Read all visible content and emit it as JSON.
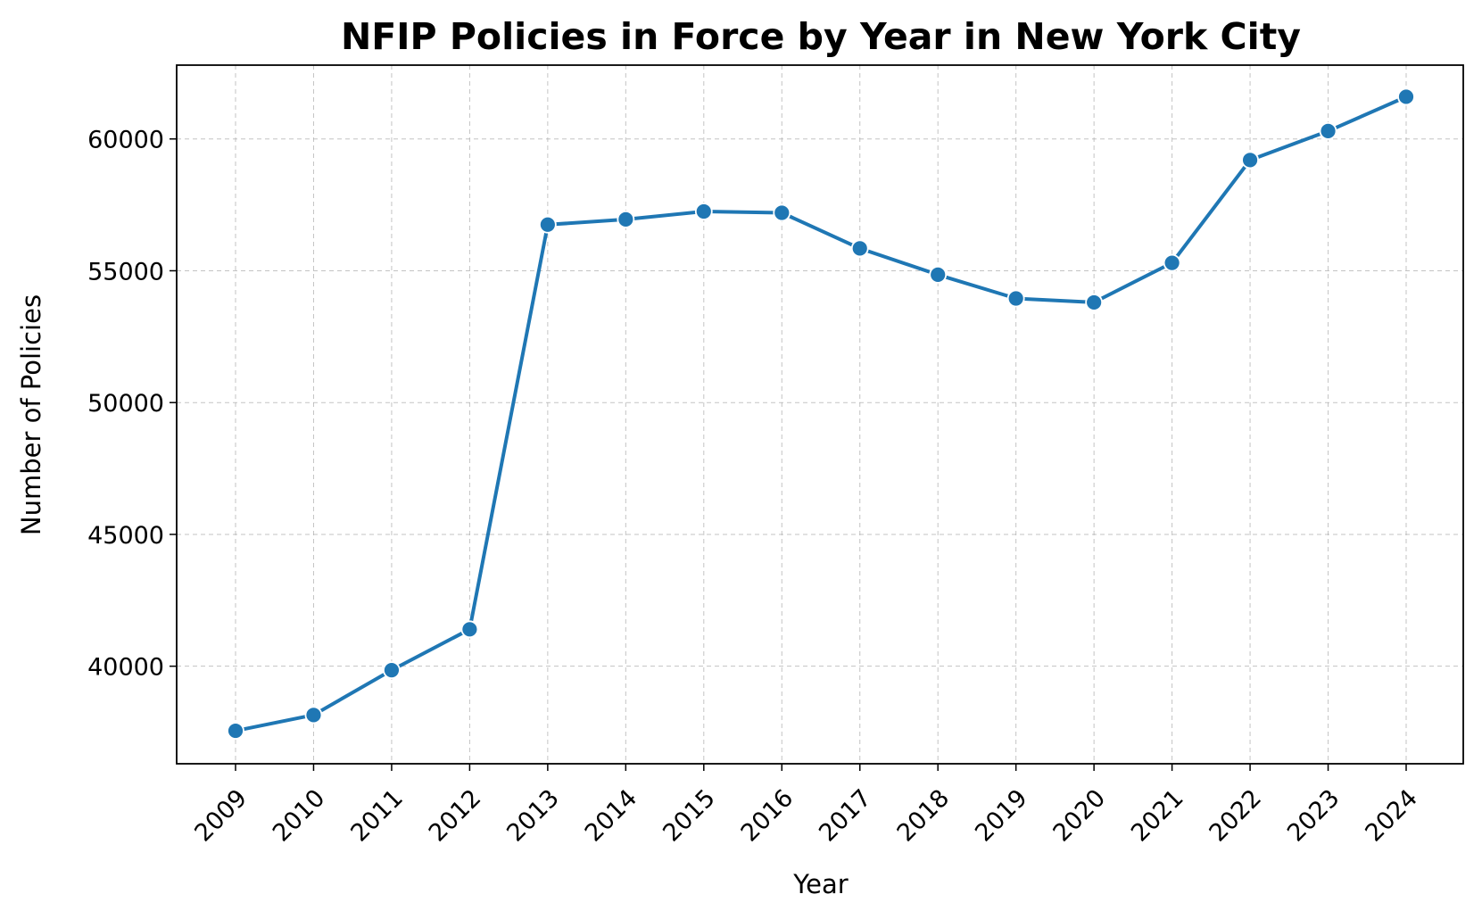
{
  "chart_data": {
    "type": "line",
    "title": "NFIP Policies in Force by Year in New York City",
    "xlabel": "Year",
    "ylabel": "Number of Policies",
    "categories": [
      "2009",
      "2010",
      "2011",
      "2012",
      "2013",
      "2014",
      "2015",
      "2016",
      "2017",
      "2018",
      "2019",
      "2020",
      "2021",
      "2022",
      "2023",
      "2024"
    ],
    "series": [
      {
        "values": [
          37550,
          38150,
          39850,
          41400,
          56750,
          56950,
          57250,
          57200,
          55850,
          54850,
          53950,
          53800,
          55300,
          59200,
          60300,
          61600
        ]
      }
    ],
    "yticks": [
      40000,
      45000,
      50000,
      55000,
      60000
    ],
    "ylim": [
      36300,
      62800
    ],
    "grid": true,
    "marker": "circle",
    "colors": {
      "line": "#1f77b4",
      "marker_edge": "#ffffff"
    }
  }
}
